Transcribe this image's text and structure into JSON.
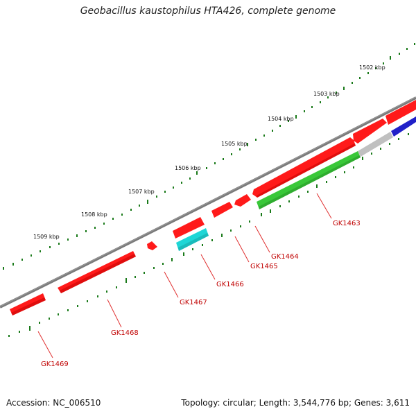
{
  "title": "Geobacillus kaustophilus HTA426, complete genome",
  "footer": {
    "accession": "Accession: NC_006510",
    "summary": "Topology: circular; Length: 3,544,776 bp; Genes: 3,611"
  },
  "ticks": [
    {
      "label": "1502 kbp"
    },
    {
      "label": "1503 kbp"
    },
    {
      "label": "1504 kbp"
    },
    {
      "label": "1505 kbp"
    },
    {
      "label": "1506 kbp"
    },
    {
      "label": "1507 kbp"
    },
    {
      "label": "1508 kbp"
    },
    {
      "label": "1509 kbp"
    }
  ],
  "genes": [
    {
      "label": "GK1463"
    },
    {
      "label": "GK1464"
    },
    {
      "label": "GK1465"
    },
    {
      "label": "GK1466"
    },
    {
      "label": "GK1467"
    },
    {
      "label": "GK1468"
    },
    {
      "label": "GK1469"
    }
  ],
  "colors": {
    "backbone": "#808080",
    "cds": "#ff1a1a",
    "tick": "#1a7a1a",
    "label": "#c00000",
    "cyan": "#1ed6d6",
    "green": "#39c839",
    "gray": "#c0c0c0",
    "blue": "#2020c8"
  }
}
